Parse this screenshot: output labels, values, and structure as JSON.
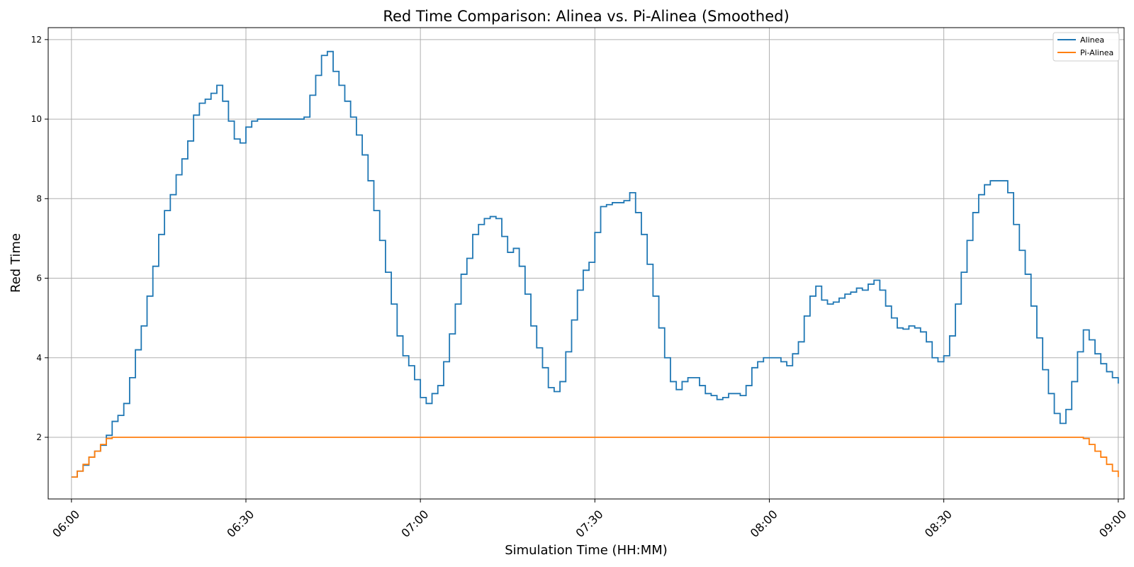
{
  "chart_data": {
    "type": "line",
    "title": "Red Time Comparison: Alinea vs. Pi-Alinea (Smoothed)",
    "xlabel": "Simulation Time (HH:MM)",
    "ylabel": "Red Time",
    "x_unit": "time HH:MM",
    "xlim": [
      "05:56",
      "09:01"
    ],
    "ylim": [
      0.45,
      12.3
    ],
    "x_ticks": [
      "06:00",
      "06:30",
      "07:00",
      "07:30",
      "08:00",
      "08:30",
      "09:00"
    ],
    "y_ticks": [
      2,
      4,
      6,
      8,
      10,
      12
    ],
    "grid": true,
    "legend_position": "top-right",
    "step": true,
    "series": [
      {
        "name": "Alinea",
        "color": "#1f77b4",
        "points": [
          [
            "06:00",
            1.0
          ],
          [
            "06:01",
            1.15
          ],
          [
            "06:02",
            1.3
          ],
          [
            "06:03",
            1.5
          ],
          [
            "06:04",
            1.65
          ],
          [
            "06:05",
            1.8
          ],
          [
            "06:06",
            2.05
          ],
          [
            "06:07",
            2.4
          ],
          [
            "06:08",
            2.55
          ],
          [
            "06:09",
            2.85
          ],
          [
            "06:10",
            3.5
          ],
          [
            "06:11",
            4.2
          ],
          [
            "06:12",
            4.8
          ],
          [
            "06:13",
            5.55
          ],
          [
            "06:14",
            6.3
          ],
          [
            "06:15",
            7.1
          ],
          [
            "06:16",
            7.7
          ],
          [
            "06:17",
            8.1
          ],
          [
            "06:18",
            8.6
          ],
          [
            "06:19",
            9.0
          ],
          [
            "06:20",
            9.45
          ],
          [
            "06:21",
            10.1
          ],
          [
            "06:22",
            10.4
          ],
          [
            "06:23",
            10.5
          ],
          [
            "06:24",
            10.65
          ],
          [
            "06:25",
            10.85
          ],
          [
            "06:26",
            10.45
          ],
          [
            "06:27",
            9.95
          ],
          [
            "06:28",
            9.5
          ],
          [
            "06:29",
            9.4
          ],
          [
            "06:30",
            9.8
          ],
          [
            "06:31",
            9.95
          ],
          [
            "06:32",
            10.0
          ],
          [
            "06:40",
            10.05
          ],
          [
            "06:41",
            10.6
          ],
          [
            "06:42",
            11.1
          ],
          [
            "06:43",
            11.6
          ],
          [
            "06:44",
            11.7
          ],
          [
            "06:45",
            11.2
          ],
          [
            "06:46",
            10.85
          ],
          [
            "06:47",
            10.45
          ],
          [
            "06:48",
            10.05
          ],
          [
            "06:49",
            9.6
          ],
          [
            "06:50",
            9.1
          ],
          [
            "06:51",
            8.45
          ],
          [
            "06:52",
            7.7
          ],
          [
            "06:53",
            6.95
          ],
          [
            "06:54",
            6.15
          ],
          [
            "06:55",
            5.35
          ],
          [
            "06:56",
            4.55
          ],
          [
            "06:57",
            4.05
          ],
          [
            "06:58",
            3.8
          ],
          [
            "06:59",
            3.45
          ],
          [
            "07:00",
            3.0
          ],
          [
            "07:01",
            2.85
          ],
          [
            "07:02",
            3.1
          ],
          [
            "07:03",
            3.3
          ],
          [
            "07:04",
            3.9
          ],
          [
            "07:05",
            4.6
          ],
          [
            "07:06",
            5.35
          ],
          [
            "07:07",
            6.1
          ],
          [
            "07:08",
            6.5
          ],
          [
            "07:09",
            7.1
          ],
          [
            "07:10",
            7.35
          ],
          [
            "07:11",
            7.5
          ],
          [
            "07:12",
            7.55
          ],
          [
            "07:13",
            7.5
          ],
          [
            "07:14",
            7.05
          ],
          [
            "07:15",
            6.65
          ],
          [
            "07:16",
            6.75
          ],
          [
            "07:17",
            6.3
          ],
          [
            "07:18",
            5.6
          ],
          [
            "07:19",
            4.8
          ],
          [
            "07:20",
            4.25
          ],
          [
            "07:21",
            3.75
          ],
          [
            "07:22",
            3.25
          ],
          [
            "07:23",
            3.15
          ],
          [
            "07:24",
            3.4
          ],
          [
            "07:25",
            4.15
          ],
          [
            "07:26",
            4.95
          ],
          [
            "07:27",
            5.7
          ],
          [
            "07:28",
            6.2
          ],
          [
            "07:29",
            6.4
          ],
          [
            "07:30",
            7.15
          ],
          [
            "07:31",
            7.8
          ],
          [
            "07:32",
            7.85
          ],
          [
            "07:33",
            7.9
          ],
          [
            "07:35",
            7.95
          ],
          [
            "07:36",
            8.15
          ],
          [
            "07:37",
            7.65
          ],
          [
            "07:38",
            7.1
          ],
          [
            "07:39",
            6.35
          ],
          [
            "07:40",
            5.55
          ],
          [
            "07:41",
            4.75
          ],
          [
            "07:42",
            4.0
          ],
          [
            "07:43",
            3.4
          ],
          [
            "07:44",
            3.2
          ],
          [
            "07:45",
            3.4
          ],
          [
            "07:46",
            3.5
          ],
          [
            "07:48",
            3.3
          ],
          [
            "07:49",
            3.1
          ],
          [
            "07:50",
            3.05
          ],
          [
            "07:51",
            2.95
          ],
          [
            "07:52",
            3.0
          ],
          [
            "07:53",
            3.1
          ],
          [
            "07:55",
            3.05
          ],
          [
            "07:56",
            3.3
          ],
          [
            "07:57",
            3.75
          ],
          [
            "07:58",
            3.9
          ],
          [
            "07:59",
            4.0
          ],
          [
            "08:02",
            3.9
          ],
          [
            "08:03",
            3.8
          ],
          [
            "08:04",
            4.1
          ],
          [
            "08:05",
            4.4
          ],
          [
            "08:06",
            5.05
          ],
          [
            "08:07",
            5.55
          ],
          [
            "08:08",
            5.8
          ],
          [
            "08:09",
            5.45
          ],
          [
            "08:10",
            5.35
          ],
          [
            "08:11",
            5.4
          ],
          [
            "08:12",
            5.5
          ],
          [
            "08:13",
            5.6
          ],
          [
            "08:14",
            5.65
          ],
          [
            "08:15",
            5.75
          ],
          [
            "08:16",
            5.7
          ],
          [
            "08:17",
            5.85
          ],
          [
            "08:18",
            5.95
          ],
          [
            "08:19",
            5.7
          ],
          [
            "08:20",
            5.3
          ],
          [
            "08:21",
            5.0
          ],
          [
            "08:22",
            4.75
          ],
          [
            "08:23",
            4.72
          ],
          [
            "08:24",
            4.8
          ],
          [
            "08:25",
            4.75
          ],
          [
            "08:26",
            4.65
          ],
          [
            "08:27",
            4.4
          ],
          [
            "08:28",
            4.0
          ],
          [
            "08:29",
            3.9
          ],
          [
            "08:30",
            4.05
          ],
          [
            "08:31",
            4.55
          ],
          [
            "08:32",
            5.35
          ],
          [
            "08:33",
            6.15
          ],
          [
            "08:34",
            6.95
          ],
          [
            "08:35",
            7.65
          ],
          [
            "08:36",
            8.1
          ],
          [
            "08:37",
            8.35
          ],
          [
            "08:38",
            8.45
          ],
          [
            "08:41",
            8.15
          ],
          [
            "08:42",
            7.35
          ],
          [
            "08:43",
            6.7
          ],
          [
            "08:44",
            6.1
          ],
          [
            "08:45",
            5.3
          ],
          [
            "08:46",
            4.5
          ],
          [
            "08:47",
            3.7
          ],
          [
            "08:48",
            3.1
          ],
          [
            "08:49",
            2.6
          ],
          [
            "08:50",
            2.35
          ],
          [
            "08:51",
            2.7
          ],
          [
            "08:52",
            3.4
          ],
          [
            "08:53",
            4.15
          ],
          [
            "08:54",
            4.7
          ],
          [
            "08:55",
            4.45
          ],
          [
            "08:56",
            4.1
          ],
          [
            "08:57",
            3.85
          ],
          [
            "08:58",
            3.65
          ],
          [
            "08:59",
            3.5
          ],
          [
            "09:00",
            3.35
          ]
        ]
      },
      {
        "name": "Pi-Alinea",
        "color": "#ff7f0e",
        "points": [
          [
            "06:00",
            1.0
          ],
          [
            "06:01",
            1.15
          ],
          [
            "06:02",
            1.32
          ],
          [
            "06:03",
            1.5
          ],
          [
            "06:04",
            1.65
          ],
          [
            "06:05",
            1.82
          ],
          [
            "06:06",
            1.97
          ],
          [
            "06:07",
            2.0
          ],
          [
            "08:53",
            2.0
          ],
          [
            "08:54",
            1.97
          ],
          [
            "08:55",
            1.82
          ],
          [
            "08:56",
            1.65
          ],
          [
            "08:57",
            1.5
          ],
          [
            "08:58",
            1.32
          ],
          [
            "08:59",
            1.15
          ],
          [
            "09:00",
            1.0
          ]
        ]
      }
    ]
  }
}
